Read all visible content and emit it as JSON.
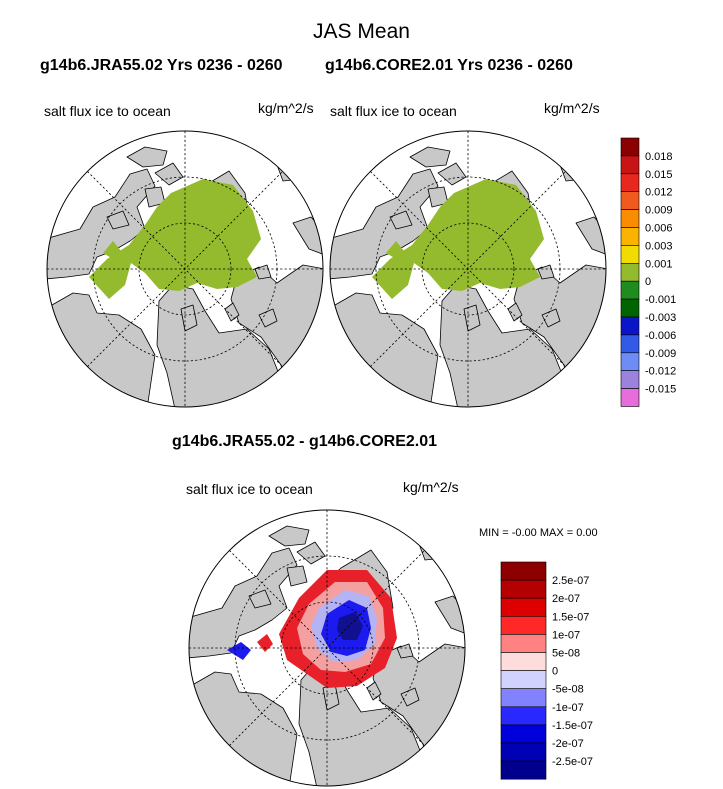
{
  "title": "JAS Mean",
  "panels": [
    {
      "case_title": "g14b6.JRA55.02  Yrs 0236 - 0260",
      "left_label": "salt flux ice to ocean",
      "right_label": "kg/m^2/s"
    },
    {
      "case_title": "g14b6.CORE2.01  Yrs 0236 - 0260",
      "left_label": "salt flux ice to ocean",
      "right_label": "kg/m^2/s"
    },
    {
      "case_title": "g14b6.JRA55.02 - g14b6.CORE2.01",
      "left_label": "salt flux ice to ocean",
      "right_label": "kg/m^2/s",
      "minmax": "MIN =  -0.00 MAX =   0.00"
    }
  ],
  "colors": {
    "land": "#c8c8c8",
    "ocean": "#ffffff",
    "ice_field": "#94bb2e",
    "diff_red": "#e8202a",
    "diff_pink": "#f5a0a0",
    "diff_blue": "#1b1bf0",
    "diff_navy": "#101090",
    "diff_lightblue": "#b4b4f5"
  },
  "chart_data": [
    {
      "type": "heatmap",
      "projection": "north polar stereographic",
      "title": "g14b6.JRA55.02  Yrs 0236 - 0260",
      "variable": "salt flux ice to ocean",
      "units": "kg/m^2/s",
      "note": "Arctic basin ice-covered region uniformly in the 0 to 0.001 class"
    },
    {
      "type": "heatmap",
      "projection": "north polar stereographic",
      "title": "g14b6.CORE2.01  Yrs 0236 - 0260",
      "variable": "salt flux ice to ocean",
      "units": "kg/m^2/s",
      "note": "Arctic basin ice-covered region uniformly in the 0 to 0.001 class"
    },
    {
      "type": "heatmap",
      "projection": "north polar stereographic",
      "title": "g14b6.JRA55.02 - g14b6.CORE2.01",
      "variable": "salt flux ice to ocean",
      "units": "kg/m^2/s",
      "min": "-0.00",
      "max": "0.00",
      "note": "negative (blue) core over central Arctic, positive (red) ring toward Siberian and Canadian margins"
    }
  ],
  "colorbar_top": {
    "labels": [
      "0.018",
      "0.015",
      "0.012",
      "0.009",
      "0.006",
      "0.003",
      "0.001",
      "0",
      "-0.001",
      "-0.003",
      "-0.006",
      "-0.009",
      "-0.012",
      "-0.015"
    ],
    "colors": [
      "#8b0000",
      "#c81414",
      "#e8281e",
      "#f05a1e",
      "#fa8c00",
      "#fab400",
      "#f0dc00",
      "#94bb2e",
      "#1e8c1e",
      "#006400",
      "#0a14c8",
      "#325ae6",
      "#6e8cf5",
      "#9b82dc",
      "#e66edc"
    ]
  },
  "colorbar_bottom": {
    "labels": [
      "2.5e-07",
      "2e-07",
      "1.5e-07",
      "1e-07",
      "5e-08",
      "0",
      "-5e-08",
      "-1e-07",
      "-1.5e-07",
      "-2e-07",
      "-2.5e-07"
    ],
    "colors": [
      "#8c0000",
      "#b40000",
      "#dc0000",
      "#ff2828",
      "#ff8282",
      "#ffdcdc",
      "#d2d2ff",
      "#8282ff",
      "#2828ff",
      "#0000dc",
      "#0000b4",
      "#00008c"
    ]
  }
}
